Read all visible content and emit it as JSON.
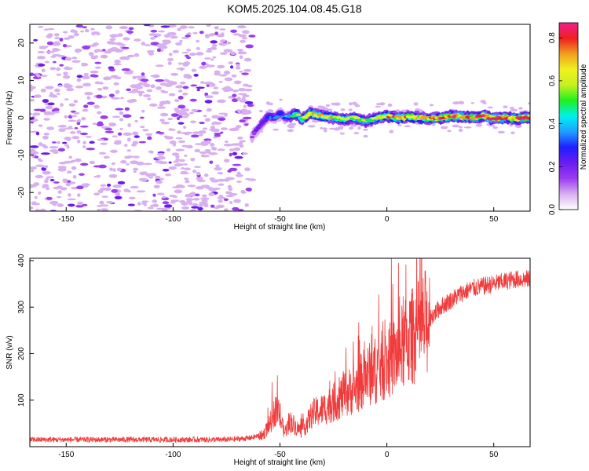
{
  "title": "KOM5.2025.104.08.45.G18",
  "chart_data": [
    {
      "type": "heatmap",
      "xlabel": "Height of straight line (km)",
      "ylabel": "Frequency (Hz)",
      "xlim": [
        -167,
        67
      ],
      "ylim": [
        -25,
        25
      ],
      "xticks": [
        -150,
        -100,
        -50,
        0,
        50
      ],
      "yticks": [
        -20,
        -10,
        0,
        10,
        20
      ],
      "colorbar": {
        "label": "Normalized spectral amplitude",
        "range": [
          0,
          0.87
        ],
        "ticks": [
          0.0,
          0.2,
          0.4,
          0.6,
          0.8
        ],
        "colors": [
          "#ffffff",
          "#d8b0f0",
          "#9a3cf0",
          "#6a1cf0",
          "#1f1fff",
          "#1f9fff",
          "#00f0f0",
          "#1ff01f",
          "#c8f01f",
          "#f0f01f",
          "#f0a01f",
          "#f01f1f",
          "#f01f8f"
        ]
      },
      "ridge": {
        "x": [
          -63,
          -58,
          -55,
          -52,
          -50,
          -48,
          -45,
          -42,
          -40,
          -36,
          -30,
          -25,
          -20,
          -15,
          -10,
          -5,
          0,
          5,
          10,
          15,
          20,
          25,
          30,
          35,
          40,
          45,
          50,
          55,
          60,
          67
        ],
        "y": [
          -5,
          -1,
          0.5,
          0,
          1.5,
          0,
          0.5,
          1,
          -0.5,
          1,
          0.5,
          0,
          -0.5,
          0,
          -1,
          0,
          0.5,
          0,
          0.3,
          0,
          -0.2,
          0,
          0.5,
          0.3,
          0,
          0.5,
          -0.3,
          0,
          -0.2,
          0
        ],
        "amplitude": [
          0.15,
          0.25,
          0.3,
          0.35,
          0.3,
          0.32,
          0.4,
          0.55,
          0.5,
          0.7,
          0.65,
          0.6,
          0.6,
          0.6,
          0.55,
          0.6,
          0.7,
          0.75,
          0.7,
          0.7,
          0.75,
          0.75,
          0.8,
          0.75,
          0.8,
          0.8,
          0.82,
          0.8,
          0.78,
          0.8
        ]
      }
    },
    {
      "type": "line",
      "xlabel": "Height of straight line (km)",
      "ylabel": "SNR (v/v)",
      "xlim": [
        -167,
        67
      ],
      "ylim": [
        0,
        405
      ],
      "xticks": [
        -150,
        -100,
        -50,
        0,
        50
      ],
      "yticks": [
        100,
        200,
        300,
        400
      ],
      "series": [
        {
          "color": "#f03c3c",
          "x": [
            -167,
            -150,
            -130,
            -110,
            -90,
            -75,
            -65,
            -58,
            -55,
            -52,
            -50,
            -48,
            -45,
            -42,
            -40,
            -38,
            -35,
            -30,
            -25,
            -20,
            -15,
            -10,
            -5,
            0,
            5,
            10,
            15,
            20,
            25,
            30,
            35,
            40,
            45,
            50,
            55,
            60,
            67
          ],
          "y": [
            15,
            15,
            15,
            15,
            15,
            15,
            18,
            25,
            45,
            80,
            65,
            30,
            55,
            40,
            35,
            45,
            70,
            80,
            95,
            110,
            125,
            150,
            165,
            180,
            200,
            230,
            250,
            275,
            300,
            315,
            330,
            340,
            345,
            350,
            355,
            360,
            360
          ]
        }
      ]
    }
  ]
}
